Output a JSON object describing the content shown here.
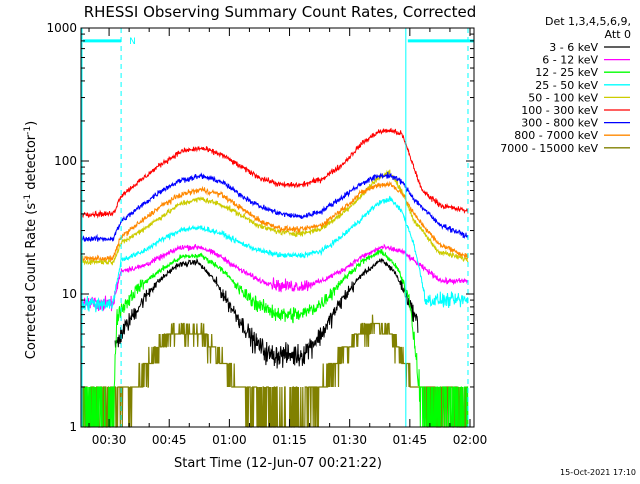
{
  "chart_data": {
    "type": "line",
    "title": "RHESSI Observing Summary Count Rates, Corrected",
    "ylabel_main": "Corrected Count Rate (s",
    "ylabel_sup1": "-1",
    "ylabel_mid": " detector",
    "ylabel_sup2": "-1",
    "ylabel_end": ")",
    "xlabel": "Start Time (12-Jun-07 00:21:22)",
    "x_unit": "minutes after 00:00",
    "xlim": [
      23,
      121
    ],
    "yscale": "log",
    "ylim": [
      1,
      1000
    ],
    "x_ticks": [
      {
        "label": "00:30",
        "value": 30
      },
      {
        "label": "00:45",
        "value": 45
      },
      {
        "label": "01:00",
        "value": 60
      },
      {
        "label": "01:15",
        "value": 75
      },
      {
        "label": "01:30",
        "value": 90
      },
      {
        "label": "01:45",
        "value": 105
      },
      {
        "label": "02:00",
        "value": 120
      }
    ],
    "y_ticks": [
      {
        "label": "1",
        "value": 1
      },
      {
        "label": "10",
        "value": 10
      },
      {
        "label": "100",
        "value": 100
      },
      {
        "label": "1000",
        "value": 1000
      }
    ],
    "legend_header": [
      "Det 1,3,4,5,6,9,",
      "Att 0"
    ],
    "night_marker_label": "N",
    "night_intervals": [
      [
        23,
        33
      ],
      [
        104,
        121
      ]
    ],
    "terminator_lines": [
      {
        "value": 33,
        "style": "dashed"
      },
      {
        "value": 104,
        "style": "solid"
      },
      {
        "value": 119.5,
        "style": "dashed"
      }
    ],
    "series": [
      {
        "name": "3 - 6 keV",
        "color": "#000000",
        "start": 31.5,
        "end": 107,
        "points": [
          [
            31.5,
            4
          ],
          [
            33,
            5
          ],
          [
            36,
            7
          ],
          [
            41,
            11.5
          ],
          [
            47,
            16.5
          ],
          [
            52,
            17.5
          ],
          [
            56,
            13
          ],
          [
            61,
            7.5
          ],
          [
            66,
            4.5
          ],
          [
            70,
            3.5
          ],
          [
            78,
            3.5
          ],
          [
            83,
            5
          ],
          [
            88,
            9
          ],
          [
            93,
            14
          ],
          [
            98,
            18
          ],
          [
            101,
            15
          ],
          [
            104,
            10
          ],
          [
            107,
            6
          ]
        ]
      },
      {
        "name": "6 - 12 keV",
        "color": "#ff00ff",
        "start": 23,
        "end": 119.5,
        "points": [
          [
            23,
            8.5
          ],
          [
            31,
            8.5
          ],
          [
            33,
            15
          ],
          [
            38,
            16
          ],
          [
            43,
            19
          ],
          [
            48,
            22.5
          ],
          [
            53,
            22.5
          ],
          [
            58,
            19
          ],
          [
            63,
            15
          ],
          [
            68,
            12.5
          ],
          [
            73,
            11.5
          ],
          [
            78,
            11.5
          ],
          [
            83,
            12.5
          ],
          [
            88,
            15
          ],
          [
            93,
            19
          ],
          [
            98,
            22.5
          ],
          [
            103,
            21
          ],
          [
            108,
            16
          ],
          [
            113,
            12.5
          ],
          [
            119.5,
            12.5
          ]
        ]
      },
      {
        "name": "12 - 25 keV",
        "color": "#00ff00",
        "start": 23,
        "end": 119.5,
        "points": [
          [
            23,
            1.4
          ],
          [
            31,
            1.4
          ],
          [
            32,
            7
          ],
          [
            37,
            11
          ],
          [
            42,
            14.5
          ],
          [
            48,
            19
          ],
          [
            53,
            19.5
          ],
          [
            58,
            15.5
          ],
          [
            63,
            10.5
          ],
          [
            68,
            8
          ],
          [
            73,
            7
          ],
          [
            78,
            7
          ],
          [
            83,
            8.5
          ],
          [
            88,
            12.5
          ],
          [
            93,
            17.5
          ],
          [
            98,
            21
          ],
          [
            102,
            15.5
          ],
          [
            105,
            9
          ],
          [
            108,
            1.4
          ],
          [
            119.5,
            1.4
          ]
        ]
      },
      {
        "name": "25 - 50 keV",
        "color": "#00ffff",
        "start": 23,
        "end": 119.5,
        "points": [
          [
            23,
            8.5
          ],
          [
            31,
            8.5
          ],
          [
            33,
            18
          ],
          [
            38,
            20.5
          ],
          [
            43,
            25.5
          ],
          [
            48,
            30.5
          ],
          [
            53,
            31.5
          ],
          [
            58,
            28.5
          ],
          [
            63,
            24
          ],
          [
            68,
            21
          ],
          [
            73,
            19.5
          ],
          [
            78,
            19.5
          ],
          [
            83,
            21
          ],
          [
            88,
            27
          ],
          [
            93,
            37
          ],
          [
            97,
            48
          ],
          [
            100,
            52
          ],
          [
            103,
            42
          ],
          [
            106,
            24
          ],
          [
            109,
            9
          ],
          [
            119.5,
            9
          ]
        ]
      },
      {
        "name": "50 - 100 keV",
        "color": "#cccc00",
        "start": 23,
        "end": 119.5,
        "points": [
          [
            23,
            17.5
          ],
          [
            31,
            17.5
          ],
          [
            33,
            24
          ],
          [
            38,
            30
          ],
          [
            43,
            38
          ],
          [
            48,
            48
          ],
          [
            53,
            52
          ],
          [
            58,
            47
          ],
          [
            63,
            39
          ],
          [
            68,
            32
          ],
          [
            73,
            29
          ],
          [
            78,
            28.5
          ],
          [
            83,
            31
          ],
          [
            88,
            40
          ],
          [
            93,
            55
          ],
          [
            97,
            75
          ],
          [
            100,
            82
          ],
          [
            103,
            60
          ],
          [
            106,
            36
          ],
          [
            112,
            21
          ],
          [
            119.5,
            18
          ]
        ]
      },
      {
        "name": "100 - 300 keV",
        "color": "#ff0000",
        "start": 23,
        "end": 119.5,
        "points": [
          [
            23,
            40
          ],
          [
            31,
            40
          ],
          [
            33,
            55
          ],
          [
            38,
            72
          ],
          [
            43,
            95
          ],
          [
            48,
            118
          ],
          [
            53,
            125
          ],
          [
            58,
            112
          ],
          [
            63,
            90
          ],
          [
            68,
            74
          ],
          [
            73,
            66
          ],
          [
            78,
            66
          ],
          [
            83,
            73
          ],
          [
            88,
            93
          ],
          [
            93,
            135
          ],
          [
            97,
            165
          ],
          [
            100,
            170
          ],
          [
            103,
            160
          ],
          [
            105,
            110
          ],
          [
            108,
            60
          ],
          [
            113,
            46
          ],
          [
            119.5,
            42
          ]
        ]
      },
      {
        "name": "300 - 800 keV",
        "color": "#0000ff",
        "start": 23,
        "end": 119.5,
        "points": [
          [
            23,
            26
          ],
          [
            31,
            26
          ],
          [
            33,
            35
          ],
          [
            38,
            46
          ],
          [
            43,
            60
          ],
          [
            48,
            72
          ],
          [
            53,
            77
          ],
          [
            58,
            70
          ],
          [
            63,
            55
          ],
          [
            68,
            45
          ],
          [
            73,
            40
          ],
          [
            78,
            38
          ],
          [
            83,
            42
          ],
          [
            88,
            53
          ],
          [
            93,
            68
          ],
          [
            97,
            77
          ],
          [
            100,
            78
          ],
          [
            103,
            70
          ],
          [
            106,
            52
          ],
          [
            112,
            34
          ],
          [
            119.5,
            27
          ]
        ]
      },
      {
        "name": "800 - 7000 keV",
        "color": "#ff8800",
        "start": 23,
        "end": 119.5,
        "points": [
          [
            23,
            18.5
          ],
          [
            31,
            18.5
          ],
          [
            33,
            27
          ],
          [
            38,
            35
          ],
          [
            43,
            46
          ],
          [
            48,
            56
          ],
          [
            53,
            61
          ],
          [
            58,
            56
          ],
          [
            63,
            44
          ],
          [
            68,
            35
          ],
          [
            73,
            31
          ],
          [
            78,
            30.5
          ],
          [
            83,
            33
          ],
          [
            88,
            43
          ],
          [
            93,
            58
          ],
          [
            97,
            66
          ],
          [
            100,
            67
          ],
          [
            103,
            58
          ],
          [
            106,
            40
          ],
          [
            112,
            24
          ],
          [
            119.5,
            19
          ]
        ]
      },
      {
        "name": "7000 - 15000 keV",
        "color": "#808000",
        "start": 23,
        "end": 119.5,
        "points": [
          [
            23,
            1.5
          ],
          [
            31,
            1.5
          ],
          [
            33,
            1.7
          ],
          [
            36,
            2
          ],
          [
            40,
            3
          ],
          [
            44,
            4.5
          ],
          [
            48,
            5.5
          ],
          [
            53,
            5
          ],
          [
            57,
            3.5
          ],
          [
            61,
            2.3
          ],
          [
            65,
            1.7
          ],
          [
            70,
            1.4
          ],
          [
            78,
            1.4
          ],
          [
            83,
            2
          ],
          [
            88,
            3.5
          ],
          [
            93,
            5.2
          ],
          [
            97,
            5.8
          ],
          [
            100,
            5
          ],
          [
            103,
            3.3
          ],
          [
            106,
            2
          ],
          [
            112,
            1.5
          ],
          [
            119.5,
            1.5
          ]
        ]
      }
    ]
  },
  "footer_timestamp": "15-Oct-2021 17:10"
}
